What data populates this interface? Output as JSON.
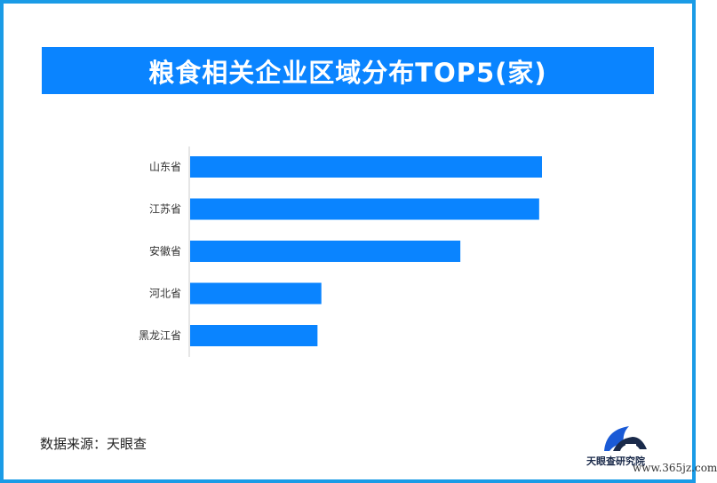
{
  "title": "粮食相关企业区域分布TOP5(家)",
  "source": "数据来源：天眼查",
  "watermark": {
    "name": "天眼查研究院",
    "url": "www.365jz.com"
  },
  "colors": {
    "frame": "#1a9be6",
    "title_bg": "#0a84ff",
    "bar": "#0a84ff"
  },
  "chart_data": {
    "type": "bar",
    "orientation": "horizontal",
    "title": "粮食相关企业区域分布TOP5(家)",
    "categories": [
      "山东省",
      "江苏省",
      "安徽省",
      "河北省",
      "黑龙江省"
    ],
    "values": [
      100,
      99.2,
      76.8,
      37.3,
      36.2
    ],
    "xlim": [
      0,
      100
    ],
    "grid": false,
    "legend": "none"
  }
}
